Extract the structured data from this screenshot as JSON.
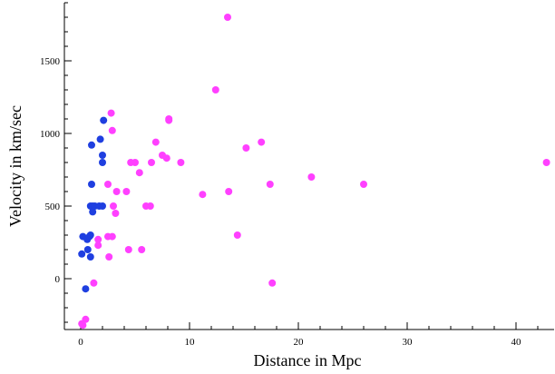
{
  "chart_data": {
    "type": "scatter",
    "xlabel": "Distance in Mpc",
    "ylabel": "Velocity in km/sec",
    "xlim": [
      -1.5,
      43.5
    ],
    "ylim": [
      -350,
      1900
    ],
    "xticks": [
      0,
      10,
      20,
      30,
      40
    ],
    "yticks": [
      0,
      500,
      1000,
      1500
    ],
    "xminor_step": 2,
    "yminor_step": 100,
    "grid": false,
    "legend": "none",
    "series": [
      {
        "color": "#1f3fe0",
        "points": [
          [
            0.1,
            170
          ],
          [
            0.2,
            290
          ],
          [
            0.45,
            -70
          ],
          [
            0.6,
            270
          ],
          [
            0.65,
            200
          ],
          [
            0.8,
            290
          ],
          [
            0.9,
            300
          ],
          [
            0.9,
            150
          ],
          [
            0.9,
            500
          ],
          [
            1.0,
            650
          ],
          [
            1.0,
            920
          ],
          [
            1.1,
            500
          ],
          [
            1.1,
            460
          ],
          [
            1.3,
            500
          ],
          [
            1.7,
            500
          ],
          [
            1.8,
            960
          ],
          [
            2.0,
            850
          ],
          [
            2.0,
            800
          ],
          [
            2.0,
            500
          ],
          [
            2.1,
            1090
          ]
        ]
      },
      {
        "color": "#ff40ff",
        "points": [
          [
            0.1,
            -310
          ],
          [
            0.2,
            -320
          ],
          [
            0.45,
            -280
          ],
          [
            1.2,
            -30
          ],
          [
            1.6,
            270
          ],
          [
            1.6,
            230
          ],
          [
            2.5,
            290
          ],
          [
            2.5,
            650
          ],
          [
            2.6,
            150
          ],
          [
            2.8,
            1140
          ],
          [
            2.9,
            290
          ],
          [
            2.9,
            1020
          ],
          [
            3.0,
            500
          ],
          [
            3.2,
            450
          ],
          [
            3.3,
            600
          ],
          [
            4.2,
            600
          ],
          [
            4.4,
            200
          ],
          [
            4.6,
            800
          ],
          [
            5.0,
            800
          ],
          [
            5.4,
            730
          ],
          [
            5.6,
            200
          ],
          [
            6.0,
            500
          ],
          [
            6.4,
            500
          ],
          [
            6.5,
            800
          ],
          [
            6.9,
            940
          ],
          [
            7.5,
            850
          ],
          [
            7.9,
            830
          ],
          [
            8.1,
            1100
          ],
          [
            8.1,
            1090
          ],
          [
            9.2,
            800
          ],
          [
            11.2,
            580
          ],
          [
            12.4,
            1300
          ],
          [
            13.5,
            1800
          ],
          [
            13.6,
            600
          ],
          [
            14.4,
            300
          ],
          [
            15.2,
            900
          ],
          [
            16.6,
            940
          ],
          [
            17.4,
            650
          ],
          [
            17.6,
            -30
          ],
          [
            21.2,
            700
          ],
          [
            26.0,
            650
          ],
          [
            42.8,
            800
          ]
        ]
      }
    ]
  }
}
